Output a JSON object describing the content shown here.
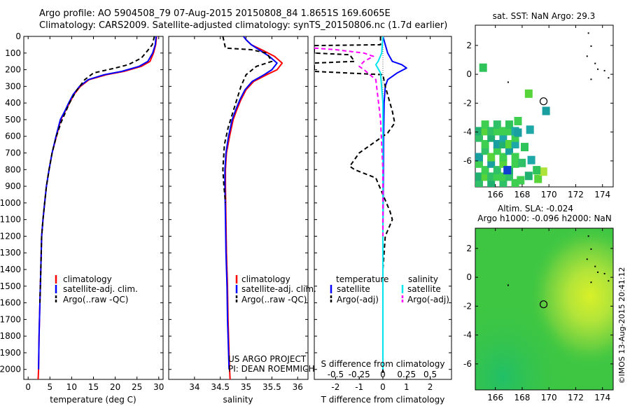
{
  "header": {
    "line1": "Argo profile: AO 5904508_79 07-Aug-2015 20150808_84 1.8651S 169.6065E",
    "line2": "Climatology: CARS2009. Satellite-adjusted climatology: synTS_20150806.nc (1.7d earlier)"
  },
  "colors": {
    "climatology": "#ff0000",
    "satellite": "#0000ff",
    "argo": "#000000",
    "sat_s": "#00e5ee",
    "argo_adj_s": "#ff00ff"
  },
  "chart_data": [
    {
      "type": "line",
      "id": "temperature",
      "xlabel": "temperature (deg C)",
      "ylabel": "",
      "xlim": [
        -1,
        31
      ],
      "ylim": [
        2060,
        0
      ],
      "xticks": [
        0,
        5,
        10,
        15,
        20,
        25,
        30
      ],
      "yticks": [
        0,
        100,
        200,
        300,
        400,
        500,
        600,
        700,
        800,
        900,
        1000,
        1100,
        1200,
        1300,
        1400,
        1500,
        1600,
        1700,
        1800,
        1900,
        2000
      ],
      "legend": [
        "climatology",
        "satellite-adj. clim.",
        "Argo(..raw -QC)"
      ],
      "series": [
        {
          "name": "climatology",
          "color": "#ff0000",
          "dash": "",
          "x": [
            29.5,
            29.3,
            28.8,
            28.0,
            26.0,
            22.0,
            18.0,
            14.0,
            12.0,
            10.5,
            9.5,
            8.5,
            7.5,
            6.5,
            5.5,
            4.8,
            4.2,
            3.8,
            3.4,
            3.1,
            2.9,
            2.7,
            2.5,
            2.4,
            2.3
          ],
          "y": [
            0,
            50,
            100,
            150,
            180,
            210,
            230,
            260,
            300,
            350,
            400,
            450,
            500,
            600,
            700,
            800,
            900,
            1000,
            1100,
            1200,
            1400,
            1600,
            1800,
            2000,
            2060
          ]
        },
        {
          "name": "satellite-adj. clim.",
          "color": "#0000ff",
          "dash": "",
          "x": [
            29.4,
            29.2,
            28.6,
            27.5,
            25.5,
            21.5,
            17.5,
            13.8,
            11.8,
            10.3,
            9.3,
            8.4,
            7.4,
            6.4,
            5.5,
            4.8,
            4.2,
            3.8,
            3.4,
            3.1,
            2.9,
            2.7,
            2.5,
            2.4
          ],
          "y": [
            0,
            50,
            100,
            150,
            180,
            210,
            230,
            260,
            300,
            350,
            400,
            450,
            500,
            600,
            700,
            800,
            900,
            1000,
            1100,
            1200,
            1400,
            1600,
            1800,
            2000
          ]
        },
        {
          "name": "Argo(..raw -QC)",
          "color": "#000000",
          "dash": "6 4",
          "x": [
            29.0,
            28.5,
            27.0,
            26.0,
            24.5,
            23.0,
            20.0,
            15.0,
            13.0,
            11.0,
            9.5,
            8.5,
            7.5,
            6.5,
            5.5,
            4.8,
            4.2,
            3.8,
            3.4,
            3.1,
            2.9,
            2.7
          ],
          "y": [
            0,
            50,
            100,
            130,
            150,
            170,
            190,
            220,
            260,
            330,
            400,
            460,
            520,
            600,
            700,
            800,
            900,
            1000,
            1100,
            1200,
            1400,
            1600
          ]
        }
      ]
    },
    {
      "type": "line",
      "id": "salinity",
      "xlabel": "salinity",
      "xlim": [
        33.5,
        36.2
      ],
      "ylim": [
        2060,
        0
      ],
      "xticks": [
        34,
        34.5,
        35,
        35.5,
        36
      ],
      "legend": [
        "climatology",
        "satellite-adj. clim.",
        "Argo(..raw -QC)"
      ],
      "series": [
        {
          "name": "climatology",
          "color": "#ff0000",
          "dash": "",
          "x": [
            34.95,
            35.0,
            35.1,
            35.3,
            35.55,
            35.7,
            35.6,
            35.4,
            35.15,
            35.0,
            34.9,
            34.82,
            34.75,
            34.68,
            34.62,
            34.6,
            34.6,
            34.61,
            34.62,
            34.64,
            34.65,
            34.67,
            34.68,
            34.69
          ],
          "y": [
            0,
            20,
            50,
            80,
            120,
            160,
            200,
            230,
            270,
            320,
            380,
            440,
            500,
            600,
            700,
            800,
            900,
            1100,
            1300,
            1500,
            1700,
            1900,
            2000,
            2060
          ]
        },
        {
          "name": "satellite-adj. clim.",
          "color": "#0000ff",
          "dash": "",
          "x": [
            34.95,
            35.0,
            35.1,
            35.25,
            35.45,
            35.6,
            35.5,
            35.35,
            35.12,
            34.98,
            34.88,
            34.8,
            34.73,
            34.66,
            34.61,
            34.59,
            34.59,
            34.6,
            34.61,
            34.63,
            34.64,
            34.66,
            34.67
          ],
          "y": [
            0,
            20,
            50,
            80,
            120,
            160,
            200,
            230,
            270,
            320,
            380,
            440,
            500,
            600,
            700,
            800,
            900,
            1100,
            1300,
            1500,
            1700,
            1900,
            2000
          ]
        },
        {
          "name": "Argo(..raw -QC)",
          "color": "#000000",
          "dash": "6 4",
          "x": [
            34.55,
            34.6,
            35.1,
            35.4,
            35.5,
            35.2,
            35.0,
            34.9,
            34.82,
            34.75,
            34.65,
            34.58,
            34.56,
            34.55,
            34.57,
            34.6
          ],
          "y": [
            0,
            70,
            80,
            100,
            150,
            180,
            230,
            300,
            380,
            450,
            550,
            650,
            750,
            800,
            900,
            1000
          ]
        }
      ]
    },
    {
      "type": "line",
      "id": "differences",
      "xlabel": "T difference from climatology",
      "xlabel_top": "S difference from climatology",
      "xlim": [
        -2.9,
        2.9
      ],
      "ylim": [
        2060,
        0
      ],
      "xticks_bottom": [
        -2,
        -1,
        0,
        1,
        2
      ],
      "xticks_top": [
        -0.5,
        -0.25,
        0,
        0.25,
        0.5
      ],
      "xticks_top_labels": [
        "-0.5",
        "-0.25",
        "0",
        "0.25",
        "0.5"
      ],
      "legend_headers": [
        "temperature",
        "salinity"
      ],
      "legend": [
        "satellite",
        "Argo(-adj)",
        "satellite",
        "Argo(-adj)"
      ],
      "series": [
        {
          "name": "satellite",
          "color": "#0000ff",
          "dash": "",
          "x": [
            0.0,
            0.2,
            0.4,
            0.8,
            1.0,
            0.6,
            0.2,
            0.1,
            0.05,
            0.03,
            0.02,
            0.0,
            0.0,
            0.0
          ],
          "y": [
            0,
            100,
            150,
            170,
            190,
            220,
            260,
            300,
            400,
            600,
            800,
            1200,
            1600,
            2000
          ]
        },
        {
          "name": "Argo(-adj) T",
          "color": "#000000",
          "dash": "6 4",
          "x": [
            -0.1,
            -0.1,
            -2.9,
            -2.9,
            -1.4,
            -1.2,
            -2.9,
            -2.9,
            0.0,
            0.1,
            0.4,
            0.5,
            0.2,
            -0.2,
            -1.0,
            -1.4,
            -1.2,
            -0.3,
            0.0,
            0.3,
            0.4,
            0.1,
            0.0,
            0.0,
            0.0,
            0.0
          ],
          "y": [
            0,
            50,
            55,
            100,
            110,
            150,
            160,
            210,
            230,
            300,
            450,
            520,
            580,
            620,
            700,
            780,
            800,
            850,
            950,
            1050,
            1100,
            1200,
            1400,
            1600,
            1800,
            2020
          ]
        },
        {
          "name": "satellite S",
          "color": "#00e5ee",
          "dash": "",
          "x": [
            0.0,
            -0.05,
            -0.2,
            -0.3,
            -0.1,
            0.0,
            0.0,
            0.0
          ],
          "y": [
            0,
            100,
            150,
            170,
            220,
            400,
            1000,
            2000
          ]
        },
        {
          "name": "Argo(-adj) S",
          "color": "#ff00ff",
          "dash": "6 4",
          "x": [
            -2.9,
            -2.0,
            -0.8,
            -0.4,
            -0.8,
            -1.0,
            -0.8,
            -0.3,
            -0.1,
            0.0,
            0.0
          ],
          "y": [
            70,
            80,
            100,
            120,
            150,
            180,
            200,
            260,
            500,
            800,
            1200
          ]
        }
      ]
    },
    {
      "type": "heatmap",
      "id": "sst",
      "title": "sat. SST: NaN Argo: 29.3",
      "xlim": [
        164.5,
        174.8
      ],
      "ylim": [
        -7.8,
        3.4
      ],
      "xticks": [
        166,
        168,
        170,
        172,
        174
      ],
      "yticks": [
        -6,
        -4,
        -2,
        0,
        2
      ],
      "argo_position": [
        169.6,
        -1.87
      ]
    },
    {
      "type": "heatmap",
      "id": "sla",
      "title": "Altim. SLA: -0.024",
      "subtitle": "Argo h1000: -0.096 h2000: NaN",
      "xlim": [
        164.5,
        174.8
      ],
      "ylim": [
        -7.8,
        3.4
      ],
      "xticks": [
        166,
        168,
        170,
        172,
        174
      ],
      "yticks": [
        -6,
        -4,
        -2,
        0,
        2
      ],
      "argo_position": [
        169.6,
        -1.87
      ]
    }
  ],
  "annotations": {
    "project_line1": "US ARGO PROJECT",
    "project_line2": "PI: DEAN ROEMMICH",
    "credit": "©IMOS 13-Aug-2015 20:41:12"
  }
}
